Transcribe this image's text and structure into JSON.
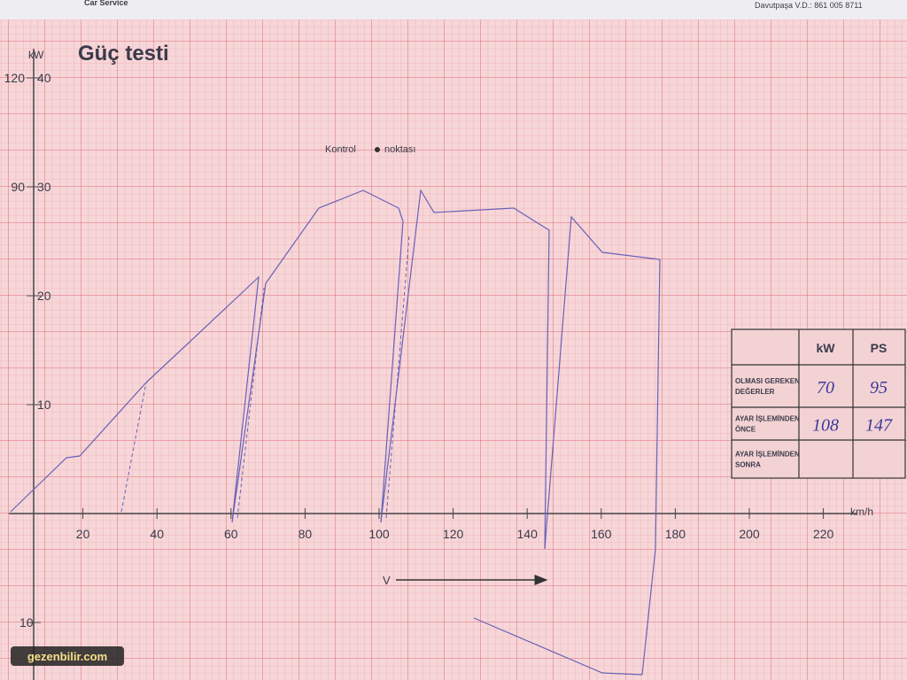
{
  "header": {
    "brand": "Car Service",
    "address": "Davutpaşa V.D.: 861 005 8711"
  },
  "title": "Güç testi",
  "y_unit": "kW",
  "y_ticks_kw": [
    40,
    30,
    20,
    10
  ],
  "y_ticks_ps": [
    120,
    90
  ],
  "negative_tick": 10,
  "x_unit": "km/h",
  "x_ticks": [
    20,
    40,
    60,
    80,
    100,
    120,
    140,
    160,
    180,
    200,
    220
  ],
  "control_point": [
    "Kontrol",
    "noktası"
  ],
  "v_label": "V",
  "table": {
    "headers": [
      "kW",
      "PS"
    ],
    "rows": [
      {
        "label": [
          "OLMASI GEREKEN",
          "DEĞERLER"
        ],
        "kw": "70",
        "ps": "95"
      },
      {
        "label": [
          "AYAR İŞLEMİNDEN",
          "ÖNCE"
        ],
        "kw": "108",
        "ps": "147"
      },
      {
        "label": [
          "AYAR İŞLEMİNDEN",
          "SONRA"
        ],
        "kw": "",
        "ps": ""
      }
    ]
  },
  "watermark": "gezenbilir.com"
}
